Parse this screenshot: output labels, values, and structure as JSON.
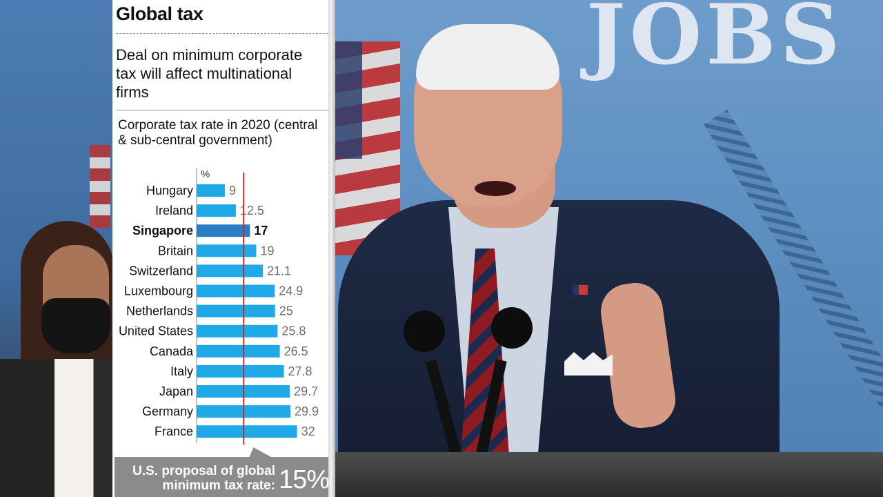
{
  "headline": "Global tax",
  "deck": "Deal on minimum corporate tax will affect multinational firms",
  "chart_data": {
    "type": "bar",
    "orientation": "horizontal",
    "title": "Corporate tax rate in 2020 (central & sub-central government)",
    "unit": "%",
    "categories": [
      "Hungary",
      "Ireland",
      "Singapore",
      "Britain",
      "Switzerland",
      "Luxembourg",
      "Netherlands",
      "United States",
      "Canada",
      "Italy",
      "Japan",
      "Germany",
      "France"
    ],
    "values": [
      9,
      12.5,
      17,
      19,
      21.1,
      24.9,
      25,
      25.8,
      26.5,
      27.8,
      29.7,
      29.9,
      32
    ],
    "value_labels": [
      "9",
      "12.5",
      "17",
      "19",
      "21.1",
      "24.9",
      "25",
      "25.8",
      "26.5",
      "27.8",
      "29.7",
      "29.9",
      "32"
    ],
    "highlight": "Singapore",
    "reference_line": {
      "value": 15,
      "color": "#c0282d"
    },
    "xlim": [
      0,
      32
    ],
    "grid": false,
    "colors": {
      "bar": "#1fa9e6",
      "highlight_bar": "#2d7dc6",
      "axis": "#999999"
    }
  },
  "proposal": {
    "label": "U.S. proposal of global minimum tax rate:",
    "value": "15%"
  },
  "photo": {
    "backdrop_text": "JOBS"
  }
}
